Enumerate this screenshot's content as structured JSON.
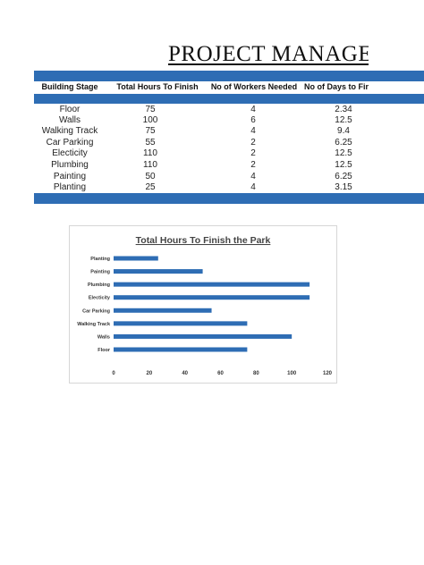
{
  "document": {
    "title": "PROJECT MANAGEM"
  },
  "table": {
    "headers": [
      "Building Stage",
      "Total Hours To Finish",
      "No of Workers Needed",
      "No of Days to Finis"
    ],
    "rows": [
      [
        "Floor",
        "75",
        "4",
        "2.34"
      ],
      [
        "Walls",
        "100",
        "6",
        "12.5"
      ],
      [
        "Walking Track",
        "75",
        "4",
        "9.4"
      ],
      [
        "Car Parking",
        "55",
        "2",
        "6.25"
      ],
      [
        "Electicity",
        "110",
        "2",
        "12.5"
      ],
      [
        "Plumbing",
        "110",
        "2",
        "12.5"
      ],
      [
        "Painting",
        "50",
        "4",
        "6.25"
      ],
      [
        "Planting",
        "25",
        "4",
        "3.15"
      ]
    ]
  },
  "colors": {
    "band": "#2e6db4",
    "bar": "#2e6db4"
  },
  "chart_data": {
    "type": "bar",
    "orientation": "horizontal",
    "title": "Total Hours To Finish the Park",
    "categories": [
      "Floor",
      "Walls",
      "Walking Track",
      "Car Parking",
      "Electicity",
      "Plumbing",
      "Painting",
      "Planting"
    ],
    "values": [
      75,
      100,
      75,
      55,
      110,
      110,
      50,
      25
    ],
    "xlim": [
      0,
      120
    ],
    "xticks": [
      "0",
      "20",
      "40",
      "60",
      "80",
      "100",
      "120"
    ],
    "grid": false,
    "legend": "none"
  }
}
